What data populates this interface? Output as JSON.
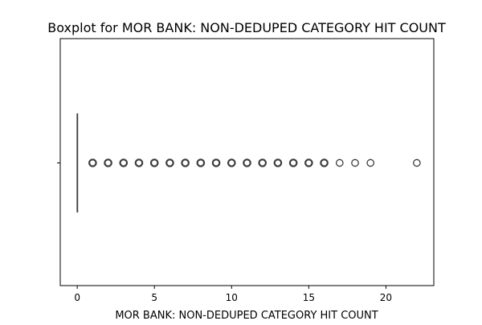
{
  "chart_data": {
    "type": "boxplot",
    "title": "Boxplot for MOR BANK: NON-DEDUPED CATEGORY HIT COUNT",
    "xlabel": "MOR BANK: NON-DEDUPED CATEGORY HIT COUNT",
    "ylabel": "",
    "orientation": "horizontal",
    "xlim": [
      -1.1,
      23.1
    ],
    "xticks": [
      0,
      5,
      10,
      15,
      20
    ],
    "xtick_labels": [
      "0",
      "5",
      "10",
      "15",
      "20"
    ],
    "grid": false,
    "box": {
      "min": 0,
      "q1": 0,
      "median": 0,
      "q3": 0,
      "max": 0
    },
    "outliers": [
      1,
      2,
      3,
      4,
      5,
      6,
      7,
      8,
      9,
      10,
      11,
      12,
      13,
      14,
      15,
      16,
      17,
      18,
      19,
      22
    ],
    "colors": {
      "box_edge": "#3d3d3d",
      "outlier_edge": "#3d3d3d",
      "axis": "#000000"
    }
  }
}
